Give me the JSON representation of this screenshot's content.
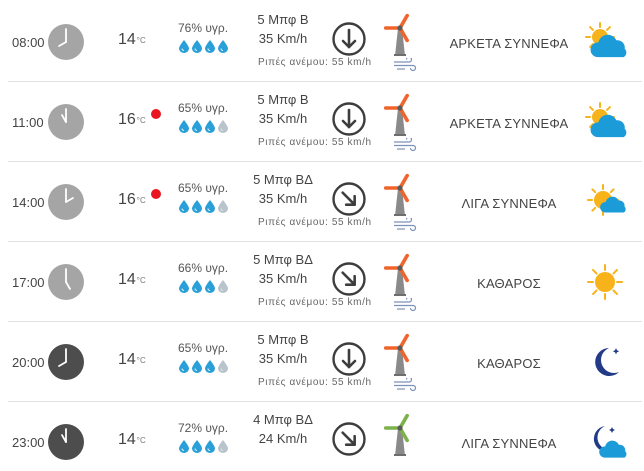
{
  "units": {
    "temp_unit": "°C",
    "humidity_suffix": "υγρ."
  },
  "colors": {
    "drop_full": "#2a9fd8",
    "drop_empty": "#b9c3cb",
    "clock_day": "#a5a5a5",
    "clock_night": "#4d4d4d",
    "mill_orange": "#f0652c",
    "mill_green": "#7db24a",
    "sun": "#f8b31b",
    "cloud": "#1b9bd8",
    "moon": "#233a87",
    "gust_alert": "#e8161e"
  },
  "rows": [
    {
      "time": "08:00",
      "clock_style": "day",
      "clock_hour": 8,
      "temp": "14",
      "alert": false,
      "humidity": "76% υγρ.",
      "drops_filled": 4,
      "wind_line1": "5 Μπφ Β",
      "wind_line2": "35 Km/h",
      "wind_arrow_deg": 0,
      "mill_color": "orange",
      "gust": "Ριπές ανέμου: 55 km/h",
      "condition": "ΑΡΚΕΤΑ ΣΥΝΝΕΦΑ",
      "weather_icon": "sun-cloud-icon"
    },
    {
      "time": "11:00",
      "clock_style": "day",
      "clock_hour": 11,
      "temp": "16",
      "alert": true,
      "humidity": "65% υγρ.",
      "drops_filled": 3,
      "wind_line1": "5 Μπφ Β",
      "wind_line2": "35 Km/h",
      "wind_arrow_deg": 0,
      "mill_color": "orange",
      "gust": "Ριπές ανέμου: 55 km/h",
      "condition": "ΑΡΚΕΤΑ ΣΥΝΝΕΦΑ",
      "weather_icon": "sun-cloud-icon"
    },
    {
      "time": "14:00",
      "clock_style": "day",
      "clock_hour": 2,
      "temp": "16",
      "alert": true,
      "humidity": "65% υγρ.",
      "drops_filled": 3,
      "wind_line1": "5 Μπφ ΒΔ",
      "wind_line2": "35 Km/h",
      "wind_arrow_deg": -45,
      "mill_color": "orange",
      "gust": "Ριπές ανέμου: 55 km/h",
      "condition": "ΛΙΓΑ ΣΥΝΝΕΦΑ",
      "weather_icon": "sun-small-cloud-icon"
    },
    {
      "time": "17:00",
      "clock_style": "day",
      "clock_hour": 5,
      "temp": "14",
      "alert": false,
      "humidity": "66% υγρ.",
      "drops_filled": 3,
      "wind_line1": "5 Μπφ ΒΔ",
      "wind_line2": "35 Km/h",
      "wind_arrow_deg": -45,
      "mill_color": "orange",
      "gust": "Ριπές ανέμου: 55 km/h",
      "condition": "ΚΑΘΑΡΟΣ",
      "weather_icon": "sun-icon"
    },
    {
      "time": "20:00",
      "clock_style": "night",
      "clock_hour": 8,
      "temp": "14",
      "alert": false,
      "humidity": "65% υγρ.",
      "drops_filled": 3,
      "wind_line1": "5 Μπφ Β",
      "wind_line2": "35 Km/h",
      "wind_arrow_deg": 0,
      "mill_color": "orange",
      "gust": "Ριπές ανέμου: 55 km/h",
      "condition": "ΚΑΘΑΡΟΣ",
      "weather_icon": "moon-icon"
    },
    {
      "time": "23:00",
      "clock_style": "night",
      "clock_hour": 11,
      "temp": "14",
      "alert": false,
      "humidity": "72% υγρ.",
      "drops_filled": 3,
      "wind_line1": "4 Μπφ ΒΔ",
      "wind_line2": "24 Km/h",
      "wind_arrow_deg": -45,
      "mill_color": "green",
      "gust": "",
      "condition": "ΛΙΓΑ ΣΥΝΝΕΦΑ",
      "weather_icon": "moon-cloud-icon"
    }
  ]
}
